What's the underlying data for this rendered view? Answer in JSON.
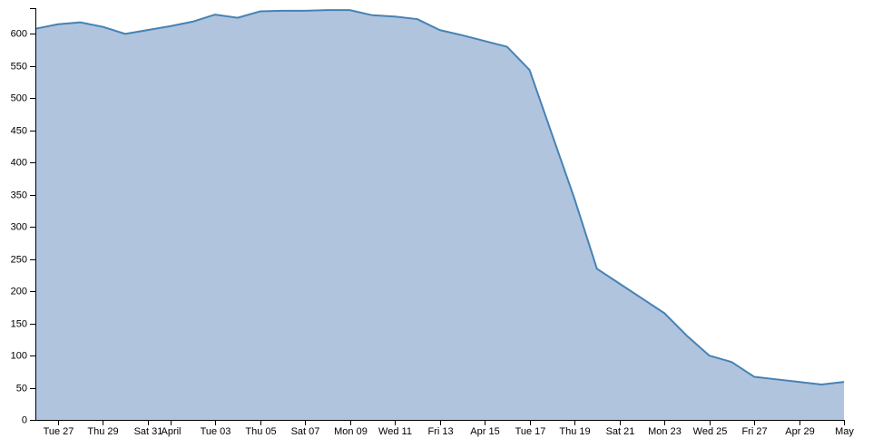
{
  "chart_data": {
    "type": "area",
    "title": "",
    "xlabel": "",
    "ylabel": "",
    "x_ticks": [
      {
        "date": "2018-03-27",
        "label": "Tue 27"
      },
      {
        "date": "2018-03-29",
        "label": "Thu 29"
      },
      {
        "date": "2018-03-31",
        "label": "Sat 31"
      },
      {
        "date": "2018-04-01",
        "label": "April"
      },
      {
        "date": "2018-04-03",
        "label": "Tue 03"
      },
      {
        "date": "2018-04-05",
        "label": "Thu 05"
      },
      {
        "date": "2018-04-07",
        "label": "Sat 07"
      },
      {
        "date": "2018-04-09",
        "label": "Mon 09"
      },
      {
        "date": "2018-04-11",
        "label": "Wed 11"
      },
      {
        "date": "2018-04-13",
        "label": "Fri 13"
      },
      {
        "date": "2018-04-15",
        "label": "Apr 15"
      },
      {
        "date": "2018-04-17",
        "label": "Tue 17"
      },
      {
        "date": "2018-04-19",
        "label": "Thu 19"
      },
      {
        "date": "2018-04-21",
        "label": "Sat 21"
      },
      {
        "date": "2018-04-23",
        "label": "Mon 23"
      },
      {
        "date": "2018-04-25",
        "label": "Wed 25"
      },
      {
        "date": "2018-04-27",
        "label": "Fri 27"
      },
      {
        "date": "2018-04-29",
        "label": "Apr 29"
      },
      {
        "date": "2018-05-01",
        "label": "May"
      }
    ],
    "y_ticks": [
      0,
      50,
      100,
      150,
      200,
      250,
      300,
      350,
      400,
      450,
      500,
      550,
      600
    ],
    "xlim": [
      "2018-03-26",
      "2018-05-01"
    ],
    "ylim": [
      0,
      640
    ],
    "grid": false,
    "fill_color": "#b0c4de",
    "line_color": "#4682b4",
    "points": [
      {
        "x": "2018-03-26",
        "y": 608
      },
      {
        "x": "2018-03-27",
        "y": 615
      },
      {
        "x": "2018-03-28",
        "y": 618
      },
      {
        "x": "2018-03-29",
        "y": 611
      },
      {
        "x": "2018-03-30",
        "y": 600
      },
      {
        "x": "2018-03-31",
        "y": 606
      },
      {
        "x": "2018-04-01",
        "y": 612
      },
      {
        "x": "2018-04-02",
        "y": 619
      },
      {
        "x": "2018-04-03",
        "y": 630
      },
      {
        "x": "2018-04-04",
        "y": 625
      },
      {
        "x": "2018-04-05",
        "y": 635
      },
      {
        "x": "2018-04-06",
        "y": 636
      },
      {
        "x": "2018-04-07",
        "y": 636
      },
      {
        "x": "2018-04-08",
        "y": 637
      },
      {
        "x": "2018-04-09",
        "y": 637
      },
      {
        "x": "2018-04-10",
        "y": 629
      },
      {
        "x": "2018-04-11",
        "y": 627
      },
      {
        "x": "2018-04-12",
        "y": 623
      },
      {
        "x": "2018-04-13",
        "y": 606
      },
      {
        "x": "2018-04-14",
        "y": 598
      },
      {
        "x": "2018-04-15",
        "y": 589
      },
      {
        "x": "2018-04-16",
        "y": 580
      },
      {
        "x": "2018-04-17",
        "y": 544
      },
      {
        "x": "2018-04-18",
        "y": 444
      },
      {
        "x": "2018-04-19",
        "y": 344
      },
      {
        "x": "2018-04-20",
        "y": 235
      },
      {
        "x": "2018-04-21",
        "y": 212
      },
      {
        "x": "2018-04-22",
        "y": 189
      },
      {
        "x": "2018-04-23",
        "y": 166
      },
      {
        "x": "2018-04-24",
        "y": 131
      },
      {
        "x": "2018-04-25",
        "y": 100
      },
      {
        "x": "2018-04-26",
        "y": 90
      },
      {
        "x": "2018-04-27",
        "y": 67
      },
      {
        "x": "2018-04-28",
        "y": 63
      },
      {
        "x": "2018-04-29",
        "y": 59
      },
      {
        "x": "2018-04-30",
        "y": 55
      },
      {
        "x": "2018-05-01",
        "y": 59
      }
    ]
  }
}
